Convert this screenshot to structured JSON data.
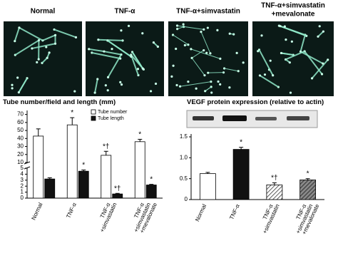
{
  "images": {
    "labels": [
      [
        "Normal"
      ],
      [
        "TNF-α"
      ],
      [
        "TNF-α+simvastatin"
      ],
      [
        "TNF-α+simvastatin",
        "+mevalonate"
      ]
    ]
  },
  "chart_data": [
    {
      "type": "bar",
      "title": "Tube number/field and length (mm)",
      "categories": [
        [
          "Normal"
        ],
        [
          "TNF-α"
        ],
        [
          "TNF-α",
          "+simvastatin"
        ],
        [
          "TNF-α",
          "+simvastatin",
          "+mevalonate"
        ]
      ],
      "series": [
        {
          "name": "Tube number",
          "color": "#ffffff",
          "axis": "y2",
          "values": [
            43,
            57,
            19,
            36
          ],
          "errors": [
            9,
            9,
            5,
            3
          ],
          "annotations": [
            null,
            "*",
            "*†",
            "*"
          ]
        },
        {
          "name": "Tube length",
          "color": "#111111",
          "values": [
            3.2,
            4.5,
            0.7,
            2.2
          ],
          "errors": [
            0.2,
            0.2,
            0.1,
            0.1
          ],
          "annotations": [
            null,
            "*",
            "*†",
            "*"
          ]
        }
      ],
      "ylim": [
        0,
        5
      ],
      "yticks": [
        0,
        1,
        2,
        3,
        4,
        5
      ],
      "y2lim": [
        10,
        75
      ],
      "y2ticks": [
        10,
        20,
        30,
        40,
        50,
        60,
        70
      ]
    },
    {
      "type": "bar",
      "title": "VEGF protein expression (relative to actin)",
      "categories": [
        [
          "Normal"
        ],
        [
          "TNF-α"
        ],
        [
          "TNF-α",
          "+simvastatin"
        ],
        [
          "TNF-α",
          "+simvastatin",
          "+mevalonate"
        ]
      ],
      "values": [
        0.62,
        1.2,
        0.35,
        0.47
      ],
      "errors": [
        0.03,
        0.05,
        0.05,
        0.03
      ],
      "colors": [
        "#ffffff",
        "#111111",
        "#ffffff",
        "#888888"
      ],
      "hatch": [
        false,
        false,
        true,
        true
      ],
      "annotations": [
        null,
        "*",
        "*†",
        "*"
      ],
      "ylim": [
        0,
        1.5
      ],
      "yticks": [
        0,
        0.5,
        {
          "value": 1,
          "label": "1.0"
        },
        1.5
      ]
    }
  ]
}
